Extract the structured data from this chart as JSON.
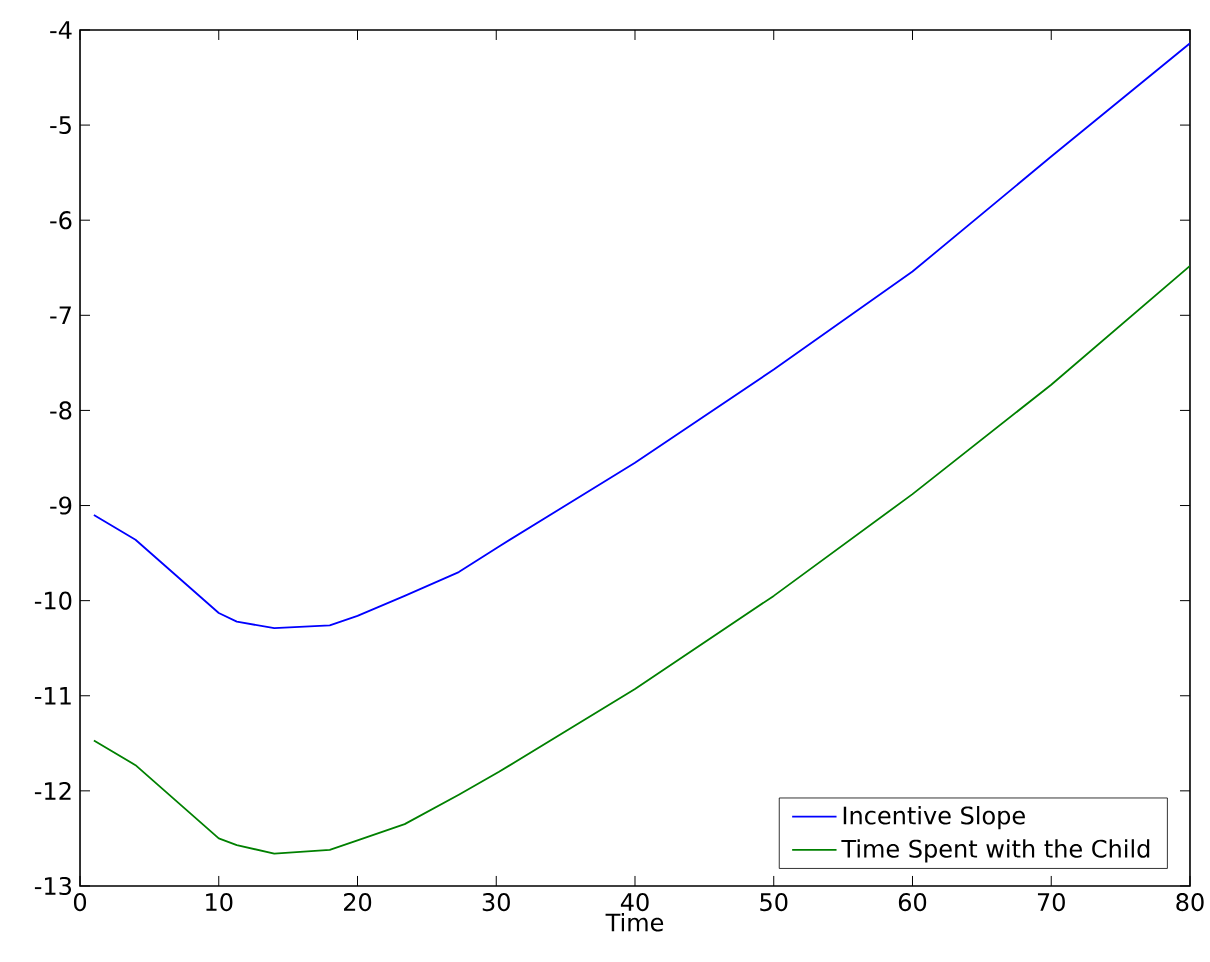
{
  "chart_data": {
    "type": "line",
    "xlabel": "Time",
    "xlim": [
      0,
      80
    ],
    "ylim": [
      -13,
      -4
    ],
    "xticks": [
      0,
      10,
      20,
      30,
      40,
      50,
      60,
      70,
      80
    ],
    "yticks": [
      -13,
      -12,
      -11,
      -10,
      -9,
      -8,
      -7,
      -6,
      -5,
      -4
    ],
    "grid": false,
    "legend": "bottom right",
    "marker": "none",
    "line_style": "solid",
    "series": [
      {
        "name": "Incentive Slope",
        "color": "#0000ff",
        "x": [
          1,
          4,
          10,
          11.3,
          14,
          18,
          20,
          23.4,
          27.3,
          30.2,
          40,
          50,
          60,
          70,
          80
        ],
        "values": [
          -9.1,
          -9.36,
          -10.13,
          -10.22,
          -10.29,
          -10.26,
          -10.16,
          -9.95,
          -9.7,
          -9.43,
          -8.55,
          -7.57,
          -6.54,
          -5.33,
          -4.14
        ]
      },
      {
        "name": "Time Spent with the Child",
        "color": "#008000",
        "x": [
          1,
          4,
          10,
          11.3,
          14,
          18,
          20,
          23.4,
          27.3,
          30.2,
          40,
          50,
          60,
          70,
          80
        ],
        "values": [
          -11.47,
          -11.73,
          -12.5,
          -12.57,
          -12.66,
          -12.62,
          -12.52,
          -12.35,
          -12.04,
          -11.8,
          -10.93,
          -9.95,
          -8.88,
          -7.73,
          -6.48
        ]
      }
    ]
  }
}
